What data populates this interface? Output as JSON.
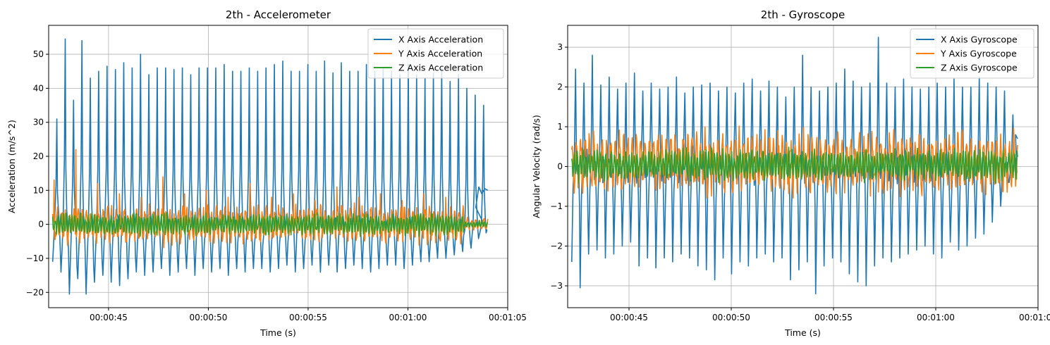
{
  "chart_data": [
    {
      "type": "line",
      "title": "2th - Accelerometer",
      "xlabel": "Time (s)",
      "ylabel": "Acceleration (m/s^2)",
      "xlim": [
        "00:00:42.0",
        "00:01:05.0"
      ],
      "ylim": [
        -24.5,
        58.5
      ],
      "xticks": [
        "00:00:45",
        "00:00:50",
        "00:00:55",
        "00:01:00",
        "00:01:05"
      ],
      "yticks": [
        -20,
        -10,
        0,
        10,
        20,
        30,
        40,
        50
      ],
      "grid": true,
      "legend_position": "top-right",
      "time_range": [
        "00:00:42.2",
        "00:01:04.0"
      ],
      "series": [
        {
          "name": "X Axis Acceleration",
          "color": "#1f77b4",
          "description": "periodic peaks",
          "peaks": [
            31,
            54.5,
            36.5,
            54,
            43,
            45,
            46.5,
            45.5,
            47.5,
            46,
            50,
            44,
            46,
            46,
            45.5,
            46,
            44,
            46,
            46,
            46,
            47,
            45,
            45,
            46,
            45,
            46,
            47,
            48,
            45,
            45,
            47,
            45,
            48,
            44.5,
            47.5,
            45,
            45,
            47,
            45,
            46,
            45,
            44,
            47,
            44,
            43,
            44.5,
            46,
            42,
            44,
            40,
            38,
            35
          ],
          "troughs": [
            -11,
            -14,
            -20.5,
            -16,
            -20.5,
            -17,
            -15,
            -17,
            -18,
            -16,
            -14,
            -15,
            -14,
            -13,
            -15,
            -14,
            -13,
            -15,
            -13,
            -14,
            -13,
            -15,
            -13,
            -14,
            -13,
            -13,
            -14,
            -13,
            -12,
            -14,
            -13,
            -12,
            -14,
            -12,
            -14,
            -13,
            -12,
            -13,
            -14,
            -13,
            -12,
            -12,
            -13,
            -12,
            -11,
            -11,
            -10,
            -10,
            -9,
            -8,
            -7,
            -3
          ],
          "end_value": 10
        },
        {
          "name": "Y Axis Acceleration",
          "color": "#ff7f0e",
          "mean": 0,
          "amplitude": 7,
          "spikes": [
            13,
            22,
            12,
            9,
            8,
            14,
            9,
            10,
            8,
            12,
            8,
            9,
            7,
            11,
            8,
            9,
            7,
            9,
            8,
            7
          ]
        },
        {
          "name": "Z Axis Acceleration",
          "color": "#2ca02c",
          "mean": 0,
          "amplitude": 4
        }
      ]
    },
    {
      "type": "line",
      "title": "2th - Gyroscope",
      "xlabel": "Time (s)",
      "ylabel": "Angular Velocity (rad/s)",
      "xlim": [
        "00:00:42.0",
        "00:01:05.0"
      ],
      "ylim": [
        -3.55,
        3.55
      ],
      "xticks": [
        "00:00:45",
        "00:00:50",
        "00:00:55",
        "00:01:00",
        "00:01:05"
      ],
      "yticks": [
        -3,
        -2,
        -1,
        0,
        1,
        2,
        3
      ],
      "grid": true,
      "legend_position": "top-right",
      "time_range": [
        "00:00:42.2",
        "00:01:04.0"
      ],
      "series": [
        {
          "name": "X Axis Gyroscope",
          "color": "#1f77b4",
          "description": "oscillating",
          "peaks": [
            2.45,
            2.1,
            2.8,
            2.05,
            2.25,
            1.95,
            2.1,
            2.35,
            1.9,
            2.1,
            1.95,
            2.0,
            2.25,
            1.85,
            2.0,
            2.05,
            2.1,
            1.9,
            2.0,
            1.85,
            2.1,
            2.2,
            1.9,
            2.15,
            2.0,
            1.75,
            2.0,
            2.8,
            2.0,
            1.9,
            2.0,
            2.1,
            2.45,
            2.15,
            2.0,
            2.1,
            3.25,
            2.1,
            2.0,
            2.2,
            2.0,
            1.95,
            2.0,
            2.1,
            2.0,
            2.2,
            2.0,
            2.0,
            2.25,
            2.1,
            2.0,
            1.9,
            1.3
          ],
          "troughs": [
            -2.4,
            -3.05,
            -2.2,
            -2.1,
            -2.3,
            -2.2,
            -2.0,
            -1.9,
            -2.5,
            -2.3,
            -2.55,
            -2.3,
            -2.4,
            -2.2,
            -2.3,
            -2.5,
            -2.6,
            -2.85,
            -2.3,
            -2.7,
            -2.4,
            -2.5,
            -2.3,
            -2.2,
            -2.4,
            -2.3,
            -2.85,
            -2.6,
            -2.4,
            -3.2,
            -2.5,
            -2.3,
            -2.4,
            -2.7,
            -2.9,
            -3.0,
            -2.5,
            -2.3,
            -2.4,
            -2.3,
            -2.2,
            -2.1,
            -2.0,
            -2.2,
            -2.3,
            -1.9,
            -2.1,
            -2.0,
            -1.8,
            -1.7,
            -1.4,
            -1.0,
            -0.4
          ]
        },
        {
          "name": "Y Axis Gyroscope",
          "color": "#ff7f0e",
          "mean": 0.1,
          "amplitude": 1.0
        },
        {
          "name": "Z Axis Gyroscope",
          "color": "#2ca02c",
          "mean": 0.05,
          "amplitude": 0.5
        }
      ]
    }
  ]
}
